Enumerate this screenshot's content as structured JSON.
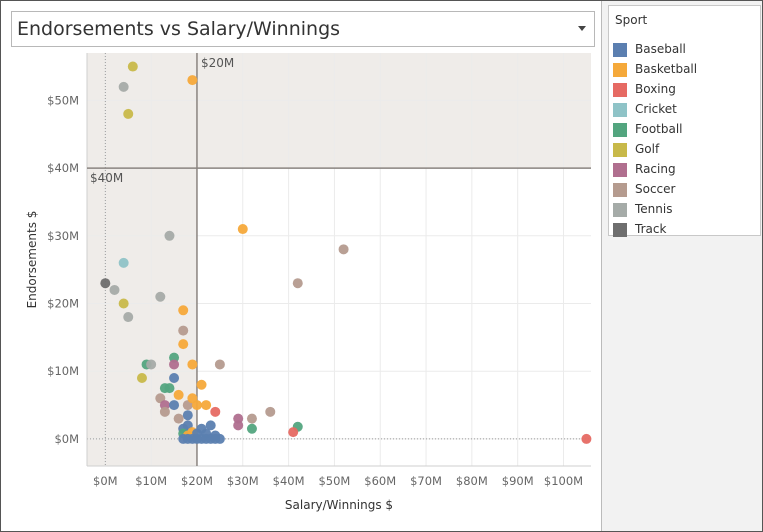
{
  "title": "Endorsements vs Salary/Winnings",
  "legend": {
    "title": "Sport",
    "items": [
      {
        "label": "Baseball",
        "color": "#5b7fb0"
      },
      {
        "label": "Basketball",
        "color": "#f5a93a"
      },
      {
        "label": "Boxing",
        "color": "#e66a63"
      },
      {
        "label": "Cricket",
        "color": "#8fc3c7"
      },
      {
        "label": "Football",
        "color": "#53a57f"
      },
      {
        "label": "Golf",
        "color": "#c8b94a"
      },
      {
        "label": "Racing",
        "color": "#b06f8f"
      },
      {
        "label": "Soccer",
        "color": "#b59b8f"
      },
      {
        "label": "Tennis",
        "color": "#a5aba8"
      },
      {
        "label": "Track",
        "color": "#6e6e6e"
      }
    ]
  },
  "chart_data": {
    "type": "scatter",
    "xlabel": "Salary/Winnings $",
    "ylabel": "Endorsements $",
    "xlim": [
      -4,
      106
    ],
    "ylim": [
      -4,
      57
    ],
    "x_ticks": [
      0,
      10,
      20,
      30,
      40,
      50,
      60,
      70,
      80,
      90,
      100
    ],
    "x_tick_labels": [
      "$0M",
      "$10M",
      "$20M",
      "$30M",
      "$40M",
      "$50M",
      "$60M",
      "$70M",
      "$80M",
      "$90M",
      "$100M"
    ],
    "y_ticks": [
      0,
      10,
      20,
      30,
      40,
      50
    ],
    "y_tick_labels": [
      "$0M",
      "$10M",
      "$20M",
      "$30M",
      "$40M",
      "$50M"
    ],
    "ref_lines": {
      "x": {
        "value": 20,
        "label": "$20M"
      },
      "y": {
        "value": 40,
        "label": "$40M"
      }
    },
    "grid": true,
    "legend_position": "right",
    "points": [
      {
        "sport": "Golf",
        "x": 6,
        "y": 55
      },
      {
        "sport": "Tennis",
        "x": 4,
        "y": 52
      },
      {
        "sport": "Golf",
        "x": 5,
        "y": 48
      },
      {
        "sport": "Basketball",
        "x": 19,
        "y": 53
      },
      {
        "sport": "Basketball",
        "x": 30,
        "y": 31
      },
      {
        "sport": "Tennis",
        "x": 14,
        "y": 30
      },
      {
        "sport": "Soccer",
        "x": 52,
        "y": 28
      },
      {
        "sport": "Cricket",
        "x": 4,
        "y": 26
      },
      {
        "sport": "Track",
        "x": 0,
        "y": 23
      },
      {
        "sport": "Soccer",
        "x": 42,
        "y": 23
      },
      {
        "sport": "Tennis",
        "x": 2,
        "y": 22
      },
      {
        "sport": "Tennis",
        "x": 12,
        "y": 21
      },
      {
        "sport": "Golf",
        "x": 4,
        "y": 20
      },
      {
        "sport": "Tennis",
        "x": 5,
        "y": 18
      },
      {
        "sport": "Basketball",
        "x": 17,
        "y": 19
      },
      {
        "sport": "Soccer",
        "x": 17,
        "y": 16
      },
      {
        "sport": "Basketball",
        "x": 17,
        "y": 14
      },
      {
        "sport": "Football",
        "x": 15,
        "y": 12
      },
      {
        "sport": "Football",
        "x": 9,
        "y": 11
      },
      {
        "sport": "Tennis",
        "x": 10,
        "y": 11
      },
      {
        "sport": "Racing",
        "x": 15,
        "y": 11
      },
      {
        "sport": "Basketball",
        "x": 19,
        "y": 11
      },
      {
        "sport": "Soccer",
        "x": 25,
        "y": 11
      },
      {
        "sport": "Golf",
        "x": 8,
        "y": 9
      },
      {
        "sport": "Baseball",
        "x": 15,
        "y": 9
      },
      {
        "sport": "Basketball",
        "x": 21,
        "y": 8
      },
      {
        "sport": "Football",
        "x": 13,
        "y": 7.5
      },
      {
        "sport": "Football",
        "x": 14,
        "y": 7.5
      },
      {
        "sport": "Basketball",
        "x": 16,
        "y": 6.5
      },
      {
        "sport": "Soccer",
        "x": 12,
        "y": 6
      },
      {
        "sport": "Racing",
        "x": 13,
        "y": 5
      },
      {
        "sport": "Baseball",
        "x": 15,
        "y": 5
      },
      {
        "sport": "Soccer",
        "x": 18,
        "y": 5
      },
      {
        "sport": "Basketball",
        "x": 20,
        "y": 5
      },
      {
        "sport": "Basketball",
        "x": 22,
        "y": 5
      },
      {
        "sport": "Basketball",
        "x": 19,
        "y": 6
      },
      {
        "sport": "Soccer",
        "x": 13,
        "y": 4
      },
      {
        "sport": "Boxing",
        "x": 24,
        "y": 4
      },
      {
        "sport": "Soccer",
        "x": 36,
        "y": 4
      },
      {
        "sport": "Baseball",
        "x": 18,
        "y": 3.5
      },
      {
        "sport": "Soccer",
        "x": 16,
        "y": 3
      },
      {
        "sport": "Racing",
        "x": 29,
        "y": 3
      },
      {
        "sport": "Soccer",
        "x": 32,
        "y": 3
      },
      {
        "sport": "Racing",
        "x": 29,
        "y": 2
      },
      {
        "sport": "Baseball",
        "x": 18,
        "y": 2
      },
      {
        "sport": "Baseball",
        "x": 23,
        "y": 2
      },
      {
        "sport": "Football",
        "x": 42,
        "y": 1.8
      },
      {
        "sport": "Football",
        "x": 32,
        "y": 1.5
      },
      {
        "sport": "Baseball",
        "x": 17,
        "y": 1.5
      },
      {
        "sport": "Boxing",
        "x": 41,
        "y": 1
      },
      {
        "sport": "Basketball",
        "x": 19,
        "y": 1
      },
      {
        "sport": "Football",
        "x": 17,
        "y": 0.8
      },
      {
        "sport": "Baseball",
        "x": 20,
        "y": 0.8
      },
      {
        "sport": "Baseball",
        "x": 22,
        "y": 0.8
      },
      {
        "sport": "Baseball",
        "x": 24,
        "y": 0.5
      },
      {
        "sport": "Basketball",
        "x": 18,
        "y": 0.5
      },
      {
        "sport": "Baseball",
        "x": 17,
        "y": 0
      },
      {
        "sport": "Baseball",
        "x": 18,
        "y": 0
      },
      {
        "sport": "Baseball",
        "x": 19,
        "y": 0
      },
      {
        "sport": "Baseball",
        "x": 20,
        "y": 0
      },
      {
        "sport": "Baseball",
        "x": 21,
        "y": 0
      },
      {
        "sport": "Baseball",
        "x": 22,
        "y": 0
      },
      {
        "sport": "Baseball",
        "x": 23,
        "y": 0
      },
      {
        "sport": "Baseball",
        "x": 24,
        "y": 0
      },
      {
        "sport": "Baseball",
        "x": 25,
        "y": 0
      },
      {
        "sport": "Baseball",
        "x": 21,
        "y": 1.5
      },
      {
        "sport": "Boxing",
        "x": 105,
        "y": 0
      }
    ]
  }
}
